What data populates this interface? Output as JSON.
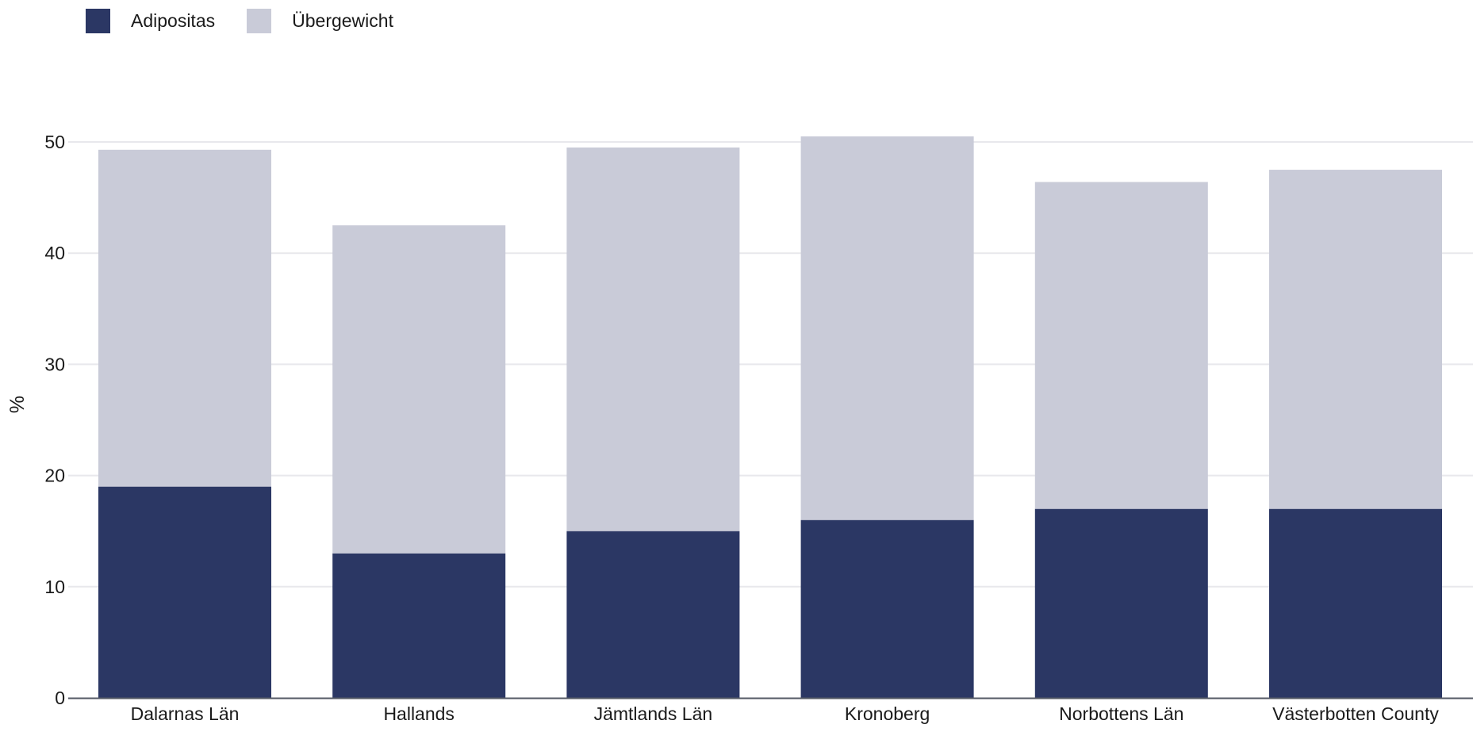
{
  "chart_data": {
    "type": "bar",
    "stacked": true,
    "categories": [
      "Dalarnas Län",
      "Hallands",
      "Jämtlands Län",
      "Kronoberg",
      "Norbottens Län",
      "Västerbotten County"
    ],
    "series": [
      {
        "name": "Adipositas",
        "values": [
          19,
          13,
          15,
          16,
          17,
          17
        ],
        "color": "#2b3764"
      },
      {
        "name": "Übergewicht",
        "values": [
          30.3,
          29.5,
          34.5,
          34.5,
          29.4,
          30.5
        ],
        "color": "#c9cbd8"
      }
    ],
    "title": "",
    "xlabel": "",
    "ylabel": "%",
    "ylim": [
      0,
      50
    ],
    "yticks": [
      0,
      10,
      20,
      30,
      40,
      50
    ],
    "grid": true,
    "legend_position": "top-left"
  }
}
